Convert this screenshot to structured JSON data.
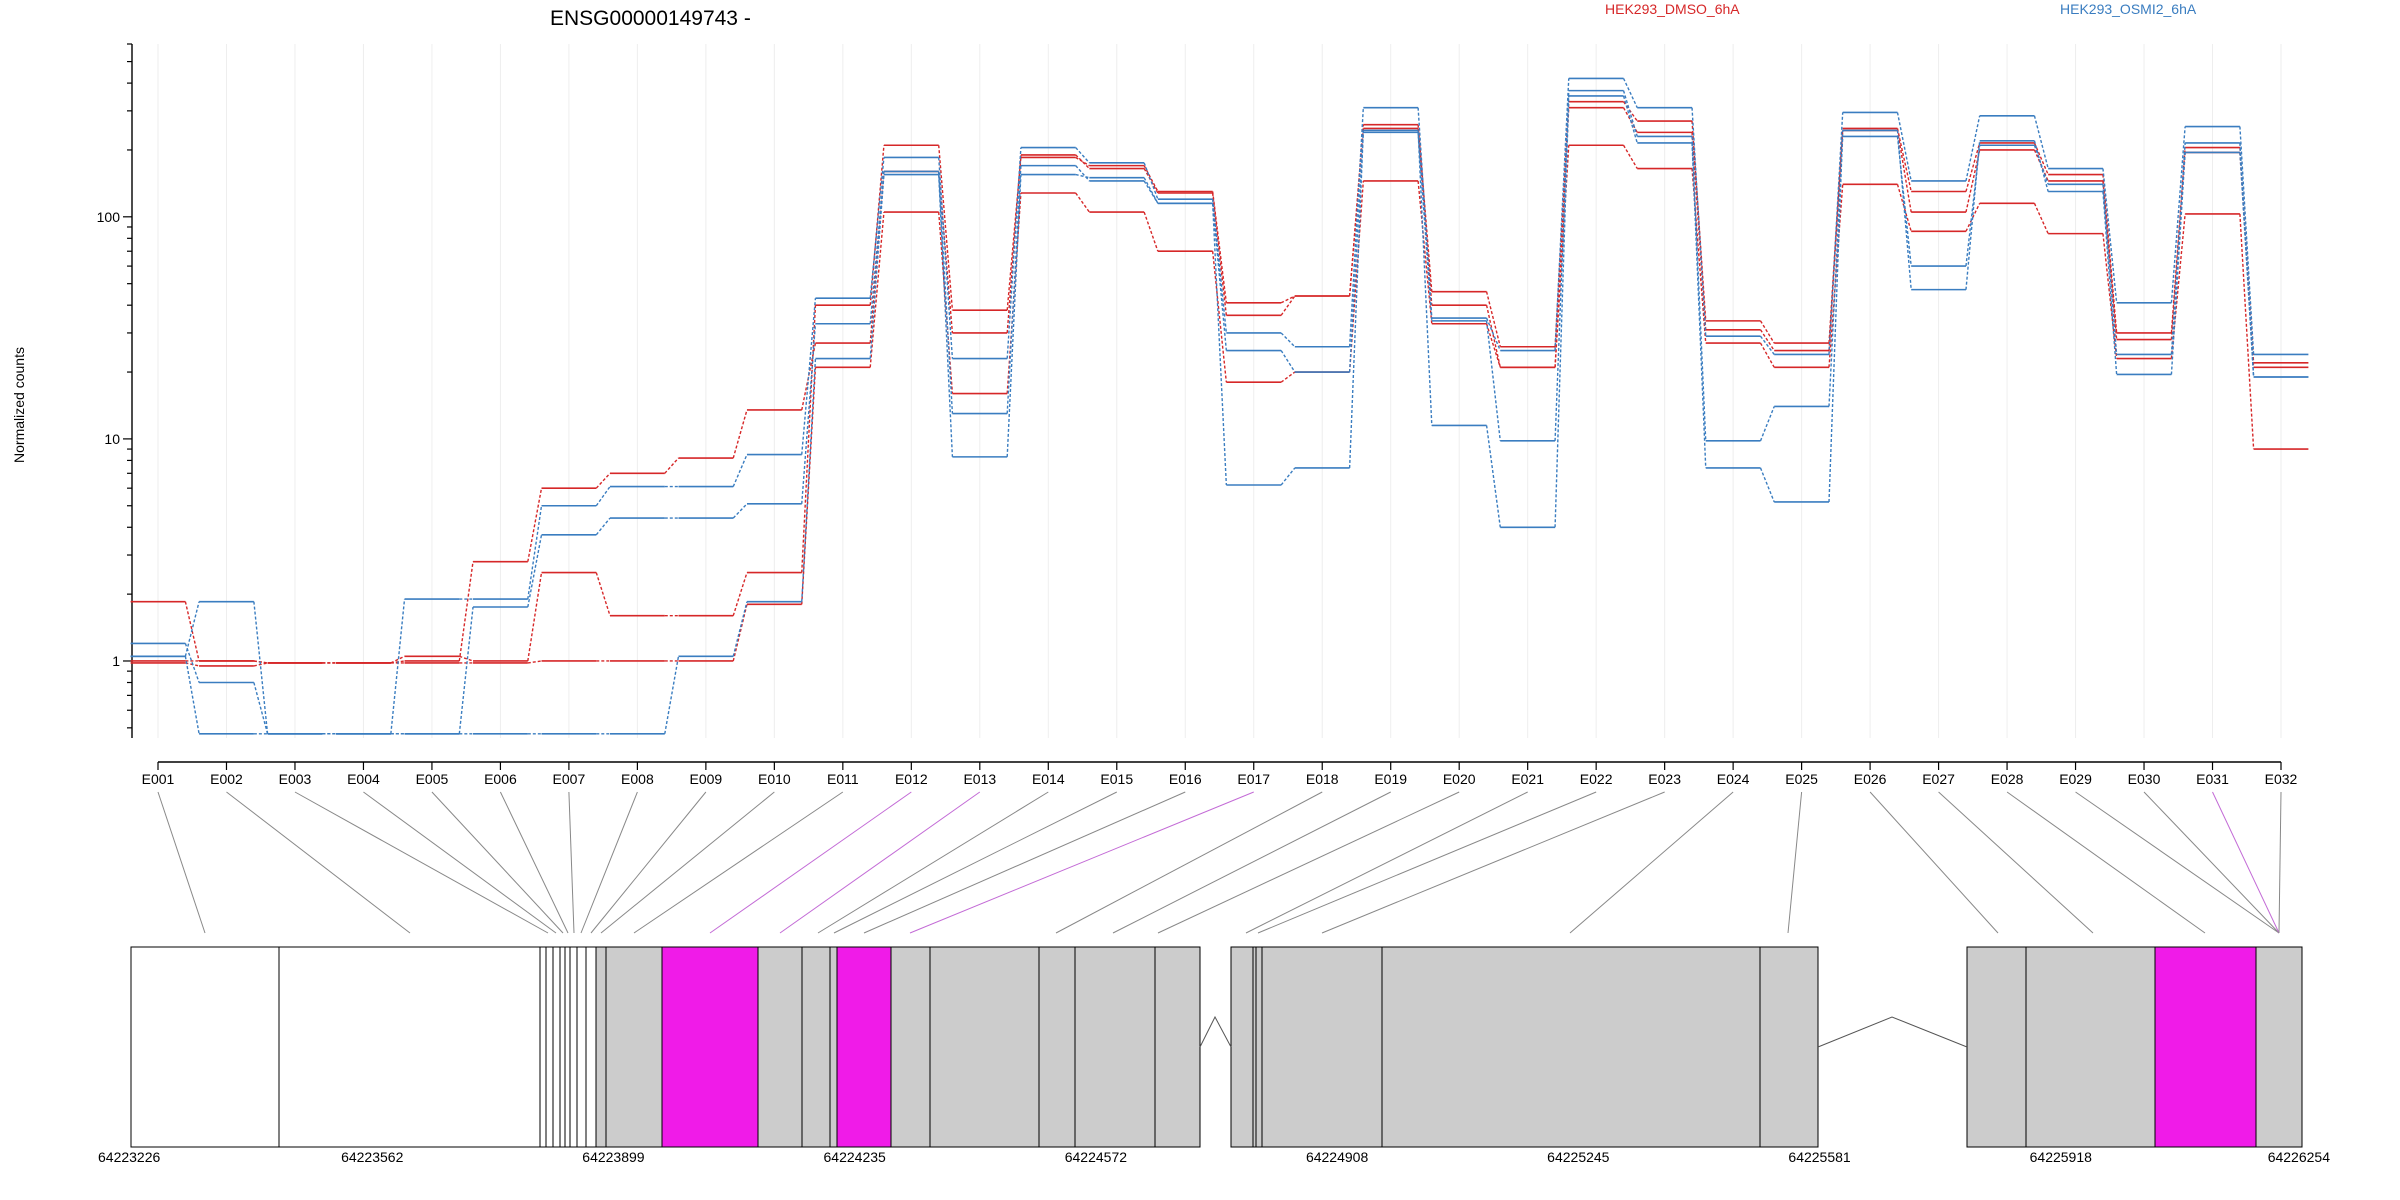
{
  "chart_data": {
    "type": "line",
    "title": "ENSG00000149743 -",
    "ylabel": "Normalized counts",
    "yscale": "log",
    "ylim": [
      0.45,
      600
    ],
    "yticks": [
      "1",
      "10",
      "100"
    ],
    "legend_placement": "top",
    "grid": true,
    "categories": [
      "E001",
      "E002",
      "E003",
      "E004",
      "E005",
      "E006",
      "E007",
      "E008",
      "E009",
      "E010",
      "E011",
      "E012",
      "E013",
      "E014",
      "E015",
      "E016",
      "E017",
      "E018",
      "E019",
      "E020",
      "E021",
      "E022",
      "E023",
      "E024",
      "E025",
      "E026",
      "E027",
      "E028",
      "E029",
      "E030",
      "E031",
      "E032"
    ],
    "series": [
      {
        "name": "HEK293_DMSO_6hA",
        "color": "#d62728",
        "values": [
          1.85,
          1.0,
          0.98,
          0.98,
          1.05,
          1.0,
          2.5,
          1.6,
          1.6,
          2.5,
          40,
          210,
          38,
          185,
          170,
          130,
          41,
          44,
          260,
          46,
          26,
          330,
          270,
          34,
          27,
          250,
          130,
          215,
          155,
          30,
          205,
          22
        ]
      },
      {
        "name": "",
        "color": "#d62728",
        "values": [
          1.0,
          1.0,
          0.98,
          0.98,
          1.0,
          2.8,
          6.0,
          7.0,
          8.2,
          13.5,
          27,
          160,
          30,
          190,
          165,
          128,
          36,
          44,
          250,
          40,
          21,
          310,
          240,
          31,
          25,
          245,
          105,
          200,
          145,
          28,
          195,
          21
        ]
      },
      {
        "name": "",
        "color": "#d62728",
        "values": [
          0.98,
          0.95,
          0.98,
          0.98,
          0.98,
          0.98,
          1.0,
          1.0,
          1.0,
          1.8,
          21,
          105,
          16,
          128,
          105,
          70,
          18,
          20,
          145,
          33,
          21,
          210,
          165,
          27,
          21,
          140,
          86,
          115,
          84,
          23,
          103,
          9
        ]
      },
      {
        "name": "HEK293_OSMI2_6hA",
        "color": "#3a7dc0",
        "values": [
          1.2,
          0.8,
          0.47,
          0.47,
          1.9,
          1.9,
          5.0,
          6.1,
          6.1,
          8.5,
          43,
          185,
          23,
          205,
          175,
          120,
          30,
          26,
          310,
          35,
          25,
          420,
          310,
          29,
          24,
          295,
          145,
          285,
          165,
          41,
          255,
          24
        ]
      },
      {
        "name": "",
        "color": "#3a7dc0",
        "values": [
          1.05,
          1.85,
          0.47,
          0.47,
          0.47,
          1.75,
          3.7,
          4.4,
          4.4,
          5.1,
          33,
          160,
          13,
          170,
          145,
          115,
          25,
          20,
          240,
          34,
          9.8,
          370,
          230,
          9.8,
          14,
          230,
          60,
          210,
          140,
          24,
          215,
          19
        ]
      },
      {
        "name": "",
        "color": "#3a7dc0",
        "values": [
          1.05,
          0.47,
          0.47,
          0.47,
          0.47,
          0.47,
          0.47,
          0.47,
          1.05,
          1.85,
          23,
          155,
          8.3,
          155,
          150,
          115,
          6.2,
          7.4,
          245,
          11.5,
          4.0,
          350,
          215,
          7.4,
          5.2,
          245,
          47,
          220,
          130,
          19.5,
          195,
          19
        ]
      }
    ],
    "gene_model": {
      "coordinate_labels": [
        "64223226",
        "64223562",
        "64223899",
        "64224235",
        "64224572",
        "64224908",
        "64225245",
        "64225581",
        "64225918",
        "64226254"
      ]
    }
  }
}
